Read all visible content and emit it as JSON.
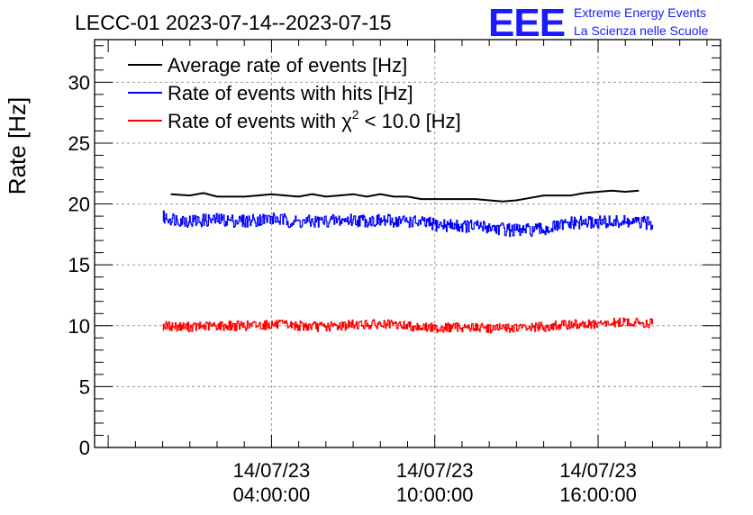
{
  "chart_data": {
    "type": "line",
    "title": "LECC-01 2023-07-14--2023-07-15",
    "ylabel": "Rate [Hz]",
    "xlabel": "",
    "ylim": [
      0,
      33.5
    ],
    "y_ticks": [
      0,
      5,
      10,
      15,
      20,
      25,
      30
    ],
    "x_range_hours": [
      -2.5,
      20.5
    ],
    "x_ticks": [
      {
        "hour": 4,
        "date": "14/07/23",
        "time": "04:00:00"
      },
      {
        "hour": 10,
        "date": "14/07/23",
        "time": "10:00:00"
      },
      {
        "hour": 16,
        "date": "14/07/23",
        "time": "16:00:00"
      }
    ],
    "grid": true,
    "legend_position": "top-left",
    "series": [
      {
        "name": "Average rate of events [Hz]",
        "color": "#000000",
        "kind": "smooth",
        "x_hours": [
          0.3,
          1.0,
          1.5,
          2.0,
          2.5,
          3.0,
          3.5,
          4.0,
          4.5,
          5.0,
          5.5,
          6.0,
          6.5,
          7.0,
          7.5,
          8.0,
          8.5,
          9.0,
          9.5,
          10.0,
          10.5,
          11.0,
          11.5,
          12.0,
          12.5,
          13.0,
          13.5,
          14.0,
          14.5,
          15.0,
          15.5,
          16.0,
          16.5,
          17.0,
          17.5
        ],
        "values": [
          20.8,
          20.7,
          20.9,
          20.6,
          20.6,
          20.6,
          20.7,
          20.8,
          20.7,
          20.6,
          20.8,
          20.6,
          20.7,
          20.8,
          20.6,
          20.8,
          20.6,
          20.6,
          20.4,
          20.4,
          20.4,
          20.4,
          20.4,
          20.3,
          20.2,
          20.3,
          20.5,
          20.7,
          20.7,
          20.7,
          20.9,
          21.0,
          21.1,
          21.0,
          21.1
        ]
      },
      {
        "name": "Rate of events with hits [Hz]",
        "color": "#0000ff",
        "kind": "noisy",
        "x_hours": [
          0,
          1,
          2,
          3,
          4,
          5,
          6,
          7,
          8,
          9,
          10,
          11,
          12,
          13,
          14,
          15,
          16,
          17,
          18
        ],
        "values": [
          18.9,
          18.6,
          18.7,
          18.6,
          18.8,
          18.5,
          18.6,
          18.7,
          18.6,
          18.6,
          18.3,
          18.2,
          18.1,
          17.8,
          17.9,
          18.4,
          18.5,
          18.5,
          18.4
        ],
        "noise_amplitude": 0.55
      },
      {
        "name": "Rate of events with χ² < 10.0 [Hz]",
        "legend_prefix": "Rate of events with χ",
        "legend_sup": "2",
        "legend_suffix": " < 10.0 [Hz]",
        "color": "#ff0000",
        "kind": "noisy",
        "x_hours": [
          0,
          1,
          2,
          3,
          4,
          5,
          6,
          7,
          8,
          9,
          10,
          11,
          12,
          13,
          14,
          15,
          16,
          17,
          18
        ],
        "values": [
          10.0,
          9.9,
          10.0,
          10.0,
          10.1,
          10.0,
          9.9,
          10.1,
          10.1,
          10.0,
          9.8,
          9.9,
          9.8,
          9.8,
          9.9,
          10.1,
          10.1,
          10.3,
          10.2
        ],
        "noise_amplitude": 0.4
      }
    ]
  },
  "logo": {
    "mark": "EEE",
    "line1": "Extreme Energy Events",
    "line2": "La Scienza nelle Scuole"
  }
}
